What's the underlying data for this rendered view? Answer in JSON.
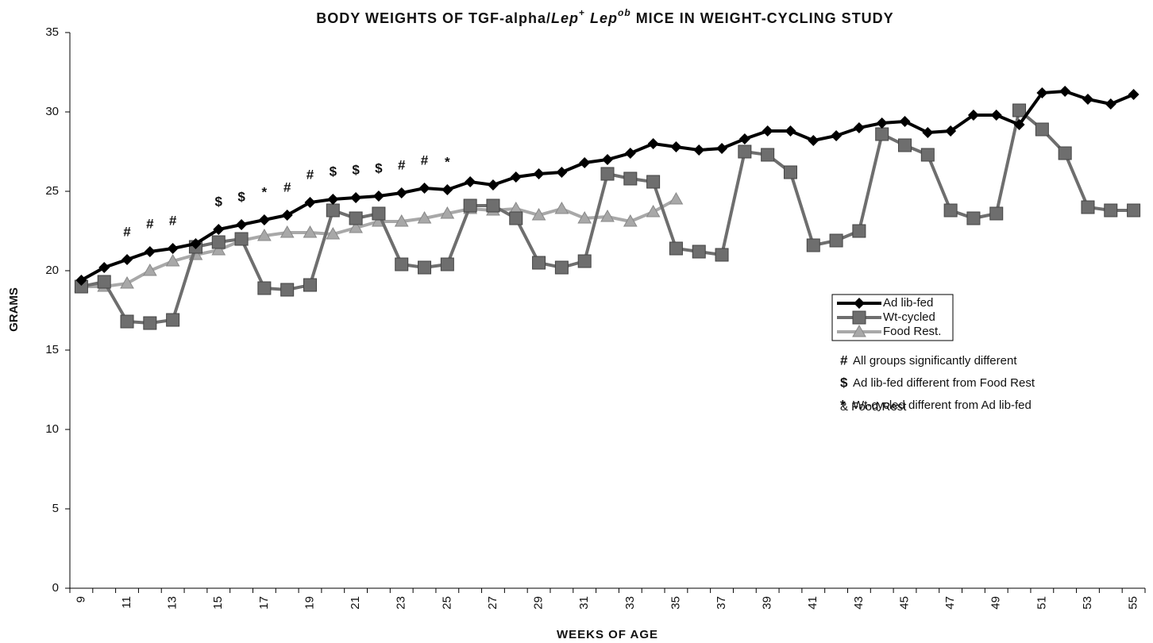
{
  "chart_data": {
    "type": "line",
    "title_parts": [
      "BODY WEIGHTS OF TGF-alpha/",
      "Lep",
      "+",
      " Lep",
      "ob",
      " MICE IN WEIGHT-CYCLING STUDY"
    ],
    "xlabel": "WEEKS OF AGE",
    "ylabel": "GRAMS",
    "categories": [
      "9",
      null,
      "11",
      null,
      "13",
      null,
      "15",
      null,
      "17",
      null,
      "19",
      null,
      "21",
      null,
      "23",
      null,
      "25",
      null,
      "27",
      null,
      "29",
      null,
      "31",
      null,
      "33",
      null,
      "35",
      null,
      "37",
      null,
      "39",
      null,
      "41",
      null,
      "43",
      null,
      "45",
      null,
      "47",
      null,
      "49",
      null,
      "51",
      null,
      "53",
      null,
      "55"
    ],
    "series": [
      {
        "name": "Ad lib-fed",
        "color": "#000000",
        "marker": "diamond",
        "values": [
          19.4,
          20.2,
          20.7,
          21.2,
          21.4,
          21.7,
          22.6,
          22.9,
          23.2,
          23.5,
          24.3,
          24.5,
          24.6,
          24.7,
          24.9,
          25.2,
          25.1,
          25.6,
          25.4,
          25.9,
          26.1,
          26.2,
          26.8,
          27.0,
          27.4,
          28.0,
          27.8,
          27.6,
          27.7,
          28.3,
          28.8,
          28.8,
          28.2,
          28.5,
          29.0,
          29.3,
          29.4,
          28.7,
          28.8,
          29.8,
          29.8,
          29.2,
          31.2,
          31.3,
          30.8,
          30.5,
          31.1
        ]
      },
      {
        "name": "Wt-cycled",
        "color": "#6e6e6e",
        "marker": "square",
        "values": [
          19.0,
          19.3,
          16.8,
          16.7,
          16.9,
          21.5,
          21.8,
          22.0,
          18.9,
          18.8,
          19.1,
          23.8,
          23.3,
          23.6,
          20.4,
          20.2,
          20.4,
          24.1,
          24.1,
          23.3,
          20.5,
          20.2,
          20.6,
          26.1,
          25.8,
          25.6,
          21.4,
          21.2,
          21.0,
          27.5,
          27.3,
          26.2,
          21.6,
          21.9,
          22.5,
          28.6,
          27.9,
          27.3,
          23.8,
          23.3,
          23.6,
          30.1,
          28.9,
          27.4,
          24.0,
          23.8,
          23.8
        ]
      },
      {
        "name": "Food Rest.",
        "color": "#a8a8a8",
        "marker": "triangle",
        "values": [
          19.0,
          19.0,
          19.2,
          20.0,
          20.6,
          21.0,
          21.3,
          21.9,
          22.2,
          22.4,
          22.4,
          22.3,
          22.7,
          23.1,
          23.1,
          23.3,
          23.6,
          23.9,
          23.8,
          23.9,
          23.5,
          23.9,
          23.3,
          23.4,
          23.1,
          23.7,
          24.5,
          null,
          null,
          null,
          null,
          null,
          null,
          null,
          null,
          null,
          null,
          null,
          null,
          null,
          null,
          null,
          null,
          null,
          null,
          null,
          null
        ]
      }
    ],
    "significance": [
      null,
      null,
      "#",
      "#",
      "#",
      null,
      "$",
      "$",
      "*",
      "#",
      "#",
      "$",
      "$",
      "$",
      "#",
      "#",
      "*",
      null,
      null,
      null,
      null,
      null,
      null,
      null,
      null,
      null,
      null,
      null,
      null,
      null,
      null,
      null,
      null,
      null,
      null,
      null,
      null,
      null,
      null,
      null,
      null,
      null,
      null,
      null,
      null,
      null,
      null
    ],
    "notes": [
      {
        "symbol": "#",
        "lines": [
          "All groups significantly different"
        ]
      },
      {
        "symbol": "$",
        "lines": [
          "Ad lib-fed different from Food Rest"
        ]
      },
      {
        "symbol": "*",
        "lines": [
          "Wt-cycled different from Ad lib-fed",
          "& Food Rest"
        ]
      }
    ],
    "ylim": [
      0,
      35
    ],
    "yticks": [
      0,
      5,
      10,
      15,
      20,
      25,
      30,
      35
    ],
    "grid": false
  }
}
